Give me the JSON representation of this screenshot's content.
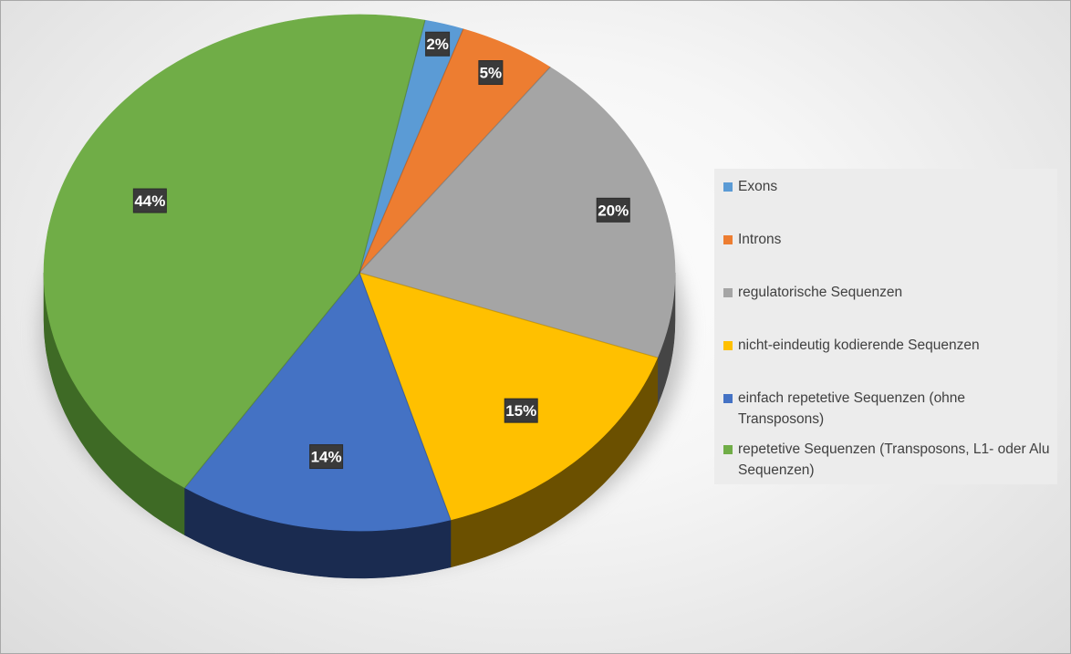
{
  "chart_data": {
    "type": "pie",
    "title": "",
    "three_d": true,
    "legend_position": "right",
    "data_label_format": "percent",
    "slices": [
      {
        "label": "Exons",
        "value": 2,
        "display": "2%",
        "color": "#5b9bd5",
        "side_color": "#2e5b85"
      },
      {
        "label": "Introns",
        "value": 5,
        "display": "5%",
        "color": "#ed7d31",
        "side_color": "#8c4515"
      },
      {
        "label": "regulatorische Sequenzen",
        "value": 20,
        "display": "20%",
        "color": "#a5a5a5",
        "side_color": "#454545"
      },
      {
        "label": "nicht-eindeutig kodierende Sequenzen",
        "value": 15,
        "display": "15%",
        "color": "#ffc000",
        "side_color": "#6b5000"
      },
      {
        "label": "einfach repetetive Sequenzen (ohne Transposons)",
        "value": 14,
        "display": "14%",
        "color": "#4472c4",
        "side_color": "#1a2b50"
      },
      {
        "label": "repetetive Sequenzen (Transposons, L1- oder Alu Sequenzen)",
        "value": 44,
        "display": "44%",
        "color": "#70ad47",
        "side_color": "#3e6a25"
      }
    ]
  }
}
